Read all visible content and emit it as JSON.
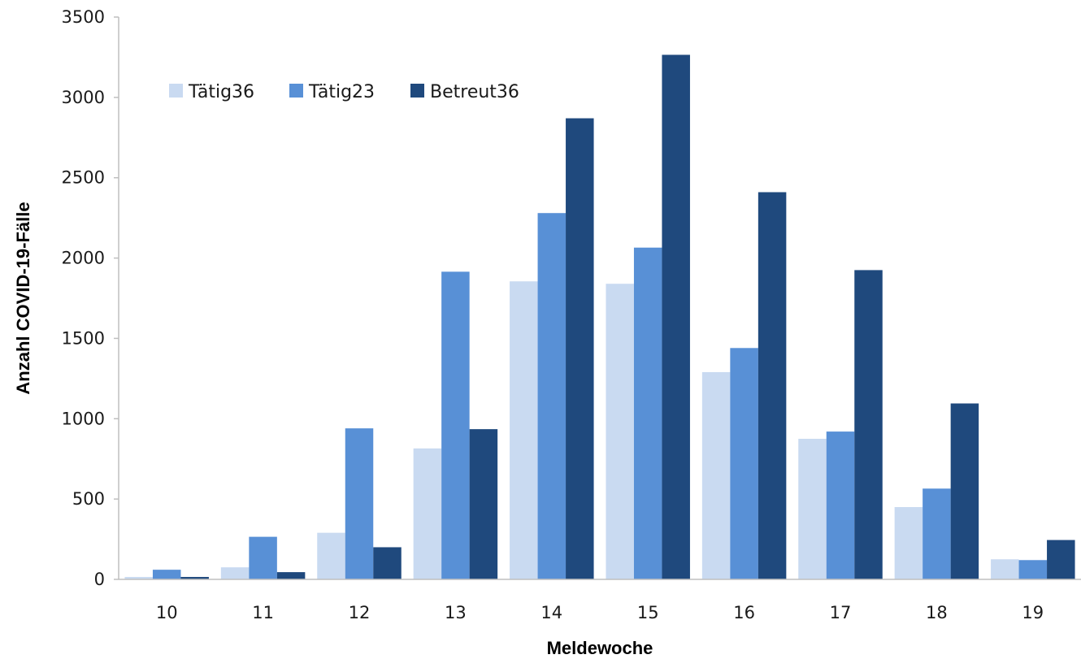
{
  "chart_data": {
    "type": "bar",
    "title": "",
    "xlabel": "Meldewoche",
    "ylabel": "Anzahl COVID-19-Fälle",
    "ylim": [
      0,
      3500
    ],
    "yticks": [
      0,
      500,
      1000,
      1500,
      2000,
      2500,
      3000,
      3500
    ],
    "grid": false,
    "legend_position": "top-left",
    "categories": [
      "10",
      "11",
      "12",
      "13",
      "14",
      "15",
      "16",
      "17",
      "18",
      "19"
    ],
    "series": [
      {
        "name": "Tätig36",
        "color": "#c9daf1",
        "values": [
          15,
          75,
          290,
          815,
          1855,
          1840,
          1290,
          875,
          450,
          125
        ]
      },
      {
        "name": "Tätig23",
        "color": "#5890d6",
        "values": [
          60,
          265,
          940,
          1915,
          2280,
          2065,
          1440,
          920,
          565,
          120
        ]
      },
      {
        "name": "Betreut36",
        "color": "#1f497d",
        "values": [
          15,
          45,
          200,
          935,
          2870,
          3265,
          2410,
          1925,
          1095,
          245
        ]
      }
    ]
  }
}
